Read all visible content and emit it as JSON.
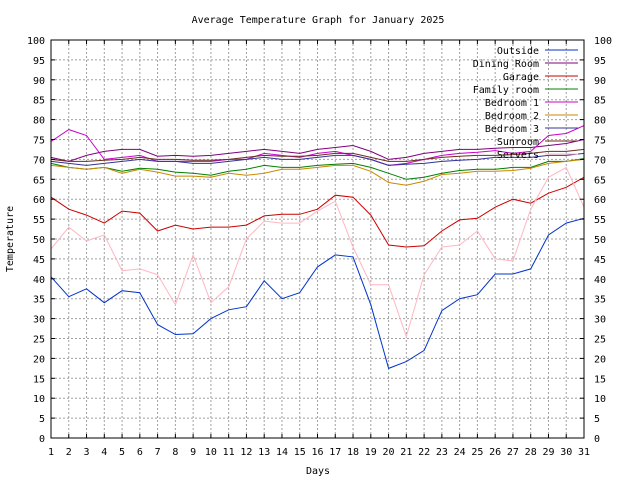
{
  "chart_data": {
    "type": "line",
    "title": "Average Temperature Graph for January 2025",
    "xlabel": "Days",
    "ylabel": "Temperature",
    "x": [
      1,
      2,
      3,
      4,
      5,
      6,
      7,
      8,
      9,
      10,
      11,
      12,
      13,
      14,
      15,
      16,
      17,
      18,
      19,
      20,
      21,
      22,
      23,
      24,
      25,
      26,
      27,
      28,
      29,
      30,
      31
    ],
    "xlim": [
      1,
      31
    ],
    "ylim": [
      0,
      100
    ],
    "yticks": [
      0,
      5,
      10,
      15,
      20,
      25,
      30,
      35,
      40,
      45,
      50,
      55,
      60,
      65,
      70,
      75,
      80,
      85,
      90,
      95,
      100
    ],
    "grid": true,
    "right_axis": true,
    "legend_position": "top-right",
    "series": [
      {
        "name": "Outside",
        "color": "#0033cc",
        "values": [
          40.5,
          35.5,
          37.5,
          34,
          37,
          36.5,
          28.5,
          26,
          26.2,
          30,
          32.2,
          33,
          39.5,
          35,
          36.5,
          43,
          46,
          45.5,
          33.5,
          17.5,
          19.2,
          22,
          32,
          35,
          36,
          41.2,
          41.2,
          42.5,
          51,
          54,
          55.2
        ]
      },
      {
        "name": "Dining Room",
        "color": "#800080",
        "values": [
          70.5,
          69.5,
          71,
          72,
          72.5,
          72.5,
          70.8,
          71,
          70.8,
          71,
          71.5,
          72,
          72.5,
          72,
          71.5,
          72.5,
          73,
          73.5,
          72,
          70,
          70.5,
          71.5,
          72,
          72.5,
          72.5,
          72.8,
          73,
          73,
          73.5,
          74,
          75
        ]
      },
      {
        "name": "Garage",
        "color": "#cc0000",
        "values": [
          60.5,
          57.5,
          56,
          54,
          57,
          56.5,
          52,
          53.5,
          52.5,
          53,
          53,
          53.5,
          55.8,
          56.2,
          56.2,
          57.5,
          61,
          60.5,
          56,
          48.5,
          48,
          48.3,
          52,
          54.8,
          55.2,
          58,
          60,
          59,
          61.5,
          63,
          65.5
        ]
      },
      {
        "name": "Family room",
        "color": "#008000",
        "values": [
          69,
          68,
          67.5,
          68,
          67,
          67.8,
          67.5,
          66.8,
          66.5,
          66,
          67,
          67.5,
          68.5,
          68,
          68,
          68.5,
          68.8,
          69,
          68,
          66.5,
          65,
          65.5,
          66.5,
          67.2,
          67.5,
          67.5,
          68,
          68,
          69.5,
          69.5,
          70.2
        ]
      },
      {
        "name": "Bedroom 1",
        "color": "#cc00cc",
        "values": [
          74.5,
          77.5,
          76,
          70,
          70.5,
          71,
          69.5,
          69.5,
          69.5,
          69.5,
          70,
          70,
          71.5,
          71,
          70.5,
          71.5,
          72,
          71,
          70,
          68.5,
          69,
          70,
          71,
          71.5,
          71.8,
          72.2,
          71.5,
          72,
          76,
          76.5,
          78.5
        ]
      },
      {
        "name": "Bedroom 2",
        "color": "#cc8800",
        "values": [
          68.5,
          68,
          67.5,
          68,
          66.5,
          67.5,
          66.8,
          65.8,
          65.8,
          65.5,
          66.5,
          66,
          66.5,
          67.5,
          67.5,
          68,
          68.5,
          68.5,
          67,
          64.2,
          63.5,
          64.5,
          66.2,
          66.5,
          67,
          67,
          67.2,
          67.8,
          69,
          69.5,
          70
        ]
      },
      {
        "name": "Bedroom 3",
        "color": "#333399",
        "values": [
          69.5,
          69,
          68.5,
          69,
          69.5,
          70,
          69.5,
          69.5,
          69,
          69,
          69.5,
          70,
          70.5,
          70,
          70,
          70.5,
          71,
          71,
          70,
          68.5,
          68.8,
          69,
          69.5,
          69.8,
          70,
          70.5,
          70.5,
          70.5,
          71,
          71,
          71.5
        ]
      },
      {
        "name": "Sunroom",
        "color": "#6b2f1a",
        "values": [
          70,
          69.5,
          69.5,
          69.8,
          70,
          70.5,
          70,
          70,
          69.8,
          69.8,
          70,
          70.5,
          71,
          70.8,
          70.8,
          71,
          71.5,
          71.5,
          70.5,
          69.5,
          69.5,
          70,
          70.5,
          70.8,
          71,
          71,
          71.2,
          71.5,
          72,
          72,
          72.5
        ]
      },
      {
        "name": "Servers",
        "color": "#ffb6c1",
        "values": [
          47.5,
          53,
          49.5,
          51,
          42,
          42.5,
          41,
          33.5,
          46,
          34,
          38,
          50,
          54.5,
          54,
          54,
          57,
          59.5,
          48,
          38.5,
          38.5,
          25.5,
          41,
          48,
          48.5,
          52,
          45,
          44.5,
          57.5,
          65.5,
          68,
          58
        ]
      }
    ]
  }
}
